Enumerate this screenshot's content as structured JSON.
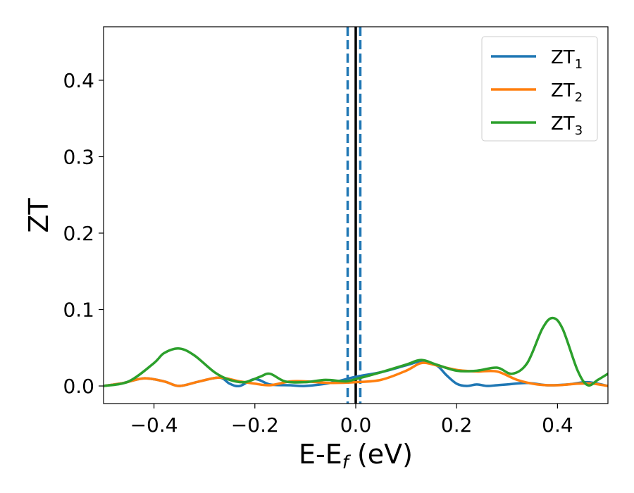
{
  "chart_data": {
    "type": "line",
    "xlabel": "E-E",
    "xlabel_sub": "f",
    "xlabel_unit": " (eV)",
    "ylabel": "ZT",
    "xlim": [
      -0.5,
      0.5
    ],
    "ylim": [
      -0.023,
      0.47
    ],
    "xticks": [
      -0.4,
      -0.2,
      0.0,
      0.2,
      0.4
    ],
    "xtick_labels": [
      "−0.4",
      "−0.2",
      "0.0",
      "0.2",
      "0.4"
    ],
    "yticks": [
      0.0,
      0.1,
      0.2,
      0.3,
      0.4
    ],
    "ytick_labels": [
      "0.0",
      "0.1",
      "0.2",
      "0.3",
      "0.4"
    ],
    "grid": false,
    "legend_position": "top-right",
    "vertical_lines": [
      {
        "x": 0.0,
        "style": "solid",
        "color": "#000000"
      },
      {
        "x": -0.016,
        "style": "dashed",
        "color": "#1f77b4"
      },
      {
        "x": 0.009,
        "style": "dashed",
        "color": "#1f77b4"
      }
    ],
    "series": [
      {
        "name": "ZT",
        "subscript": "1",
        "color": "#1f77b4",
        "x": [
          -0.5,
          -0.46,
          -0.42,
          -0.38,
          -0.35,
          -0.31,
          -0.27,
          -0.25,
          -0.23,
          -0.2,
          -0.17,
          -0.13,
          -0.1,
          -0.05,
          0.0,
          0.05,
          0.1,
          0.13,
          0.16,
          0.18,
          0.2,
          0.22,
          0.24,
          0.26,
          0.28,
          0.3,
          0.34,
          0.38,
          0.42,
          0.46,
          0.5
        ],
        "y": [
          0.0,
          0.004,
          0.01,
          0.006,
          0.0,
          0.006,
          0.011,
          0.003,
          0.0,
          0.009,
          0.002,
          0.001,
          0.0,
          0.004,
          0.012,
          0.018,
          0.027,
          0.032,
          0.027,
          0.014,
          0.003,
          0.0,
          0.002,
          0.0,
          0.001,
          0.002,
          0.004,
          0.001,
          0.002,
          0.005,
          0.0
        ]
      },
      {
        "name": "ZT",
        "subscript": "2",
        "color": "#ff7f0e",
        "x": [
          -0.5,
          -0.46,
          -0.42,
          -0.38,
          -0.35,
          -0.31,
          -0.27,
          -0.23,
          -0.2,
          -0.17,
          -0.13,
          -0.1,
          -0.05,
          0.0,
          0.05,
          0.1,
          0.13,
          0.16,
          0.2,
          0.24,
          0.28,
          0.32,
          0.36,
          0.4,
          0.44,
          0.47,
          0.5
        ],
        "y": [
          0.0,
          0.004,
          0.01,
          0.006,
          0.0,
          0.006,
          0.011,
          0.006,
          0.003,
          0.001,
          0.006,
          0.006,
          0.004,
          0.005,
          0.008,
          0.02,
          0.03,
          0.027,
          0.021,
          0.019,
          0.019,
          0.008,
          0.002,
          0.001,
          0.003,
          0.003,
          0.0
        ]
      },
      {
        "name": "ZT",
        "subscript": "3",
        "color": "#2ca02c",
        "x": [
          -0.5,
          -0.45,
          -0.4,
          -0.38,
          -0.35,
          -0.32,
          -0.28,
          -0.25,
          -0.22,
          -0.19,
          -0.17,
          -0.14,
          -0.1,
          -0.06,
          -0.02,
          0.0,
          0.05,
          0.1,
          0.13,
          0.16,
          0.2,
          0.24,
          0.28,
          0.31,
          0.34,
          0.37,
          0.39,
          0.41,
          0.44,
          0.46,
          0.48,
          0.5
        ],
        "y": [
          0.0,
          0.006,
          0.03,
          0.043,
          0.049,
          0.04,
          0.018,
          0.008,
          0.005,
          0.012,
          0.016,
          0.006,
          0.005,
          0.008,
          0.006,
          0.009,
          0.018,
          0.028,
          0.034,
          0.028,
          0.02,
          0.02,
          0.024,
          0.016,
          0.03,
          0.075,
          0.089,
          0.075,
          0.02,
          0.001,
          0.008,
          0.016
        ]
      }
    ]
  }
}
